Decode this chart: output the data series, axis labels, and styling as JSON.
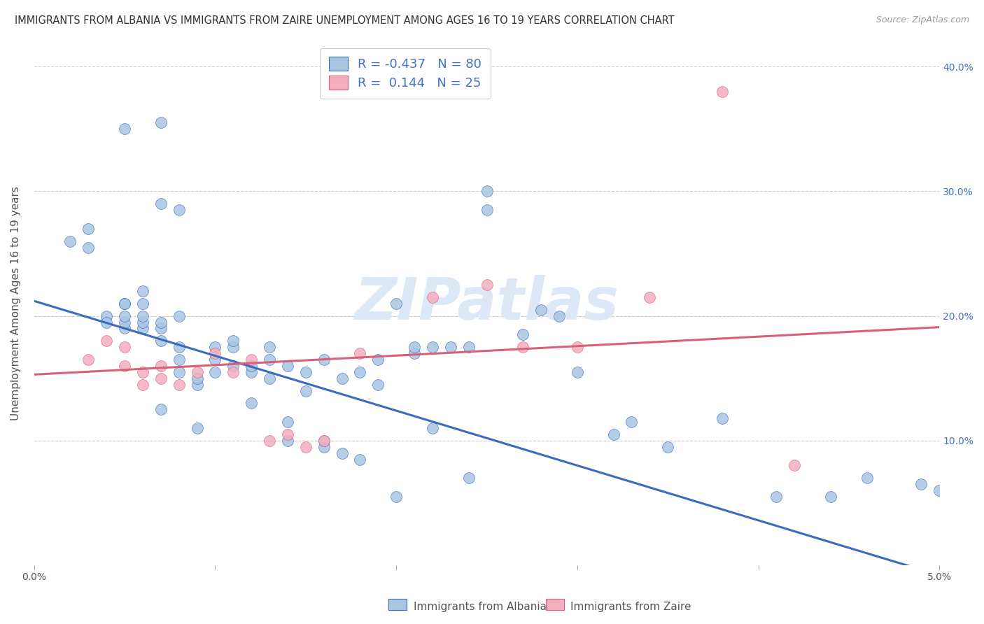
{
  "title": "IMMIGRANTS FROM ALBANIA VS IMMIGRANTS FROM ZAIRE UNEMPLOYMENT AMONG AGES 16 TO 19 YEARS CORRELATION CHART",
  "source": "Source: ZipAtlas.com",
  "ylabel": "Unemployment Among Ages 16 to 19 years",
  "xlim": [
    0.0,
    0.05
  ],
  "ylim": [
    0.0,
    0.42
  ],
  "x_ticks": [
    0.0,
    0.01,
    0.02,
    0.03,
    0.04,
    0.05
  ],
  "y_ticks": [
    0.0,
    0.1,
    0.2,
    0.3,
    0.4
  ],
  "color_albania": "#aac5e2",
  "color_zaire": "#f4aec0",
  "color_line_albania": "#3b6bbf",
  "color_line_zaire": "#d9607a",
  "watermark": "ZIPatlas",
  "watermark_color": "#dce8f5",
  "albania_line_x0": 0.0,
  "albania_line_y0": 0.212,
  "albania_line_x1": 0.05,
  "albania_line_y1": -0.008,
  "zaire_line_x0": 0.0,
  "zaire_line_y0": 0.153,
  "zaire_line_x1": 0.05,
  "zaire_line_y1": 0.191,
  "albania_x": [
    0.002,
    0.003,
    0.003,
    0.004,
    0.004,
    0.005,
    0.005,
    0.005,
    0.005,
    0.005,
    0.005,
    0.006,
    0.006,
    0.006,
    0.006,
    0.006,
    0.007,
    0.007,
    0.007,
    0.007,
    0.007,
    0.007,
    0.008,
    0.008,
    0.008,
    0.008,
    0.008,
    0.009,
    0.009,
    0.009,
    0.01,
    0.01,
    0.01,
    0.011,
    0.011,
    0.011,
    0.012,
    0.012,
    0.012,
    0.013,
    0.013,
    0.013,
    0.014,
    0.014,
    0.014,
    0.015,
    0.015,
    0.016,
    0.016,
    0.016,
    0.017,
    0.017,
    0.018,
    0.018,
    0.019,
    0.019,
    0.02,
    0.02,
    0.021,
    0.021,
    0.022,
    0.022,
    0.023,
    0.024,
    0.024,
    0.025,
    0.025,
    0.027,
    0.028,
    0.029,
    0.03,
    0.032,
    0.033,
    0.035,
    0.038,
    0.041,
    0.044,
    0.046,
    0.049,
    0.05
  ],
  "albania_y": [
    0.26,
    0.27,
    0.255,
    0.2,
    0.195,
    0.19,
    0.21,
    0.195,
    0.2,
    0.35,
    0.21,
    0.19,
    0.195,
    0.2,
    0.21,
    0.22,
    0.125,
    0.18,
    0.19,
    0.195,
    0.29,
    0.355,
    0.155,
    0.165,
    0.175,
    0.2,
    0.285,
    0.11,
    0.145,
    0.15,
    0.155,
    0.165,
    0.175,
    0.16,
    0.175,
    0.18,
    0.13,
    0.155,
    0.16,
    0.15,
    0.165,
    0.175,
    0.1,
    0.115,
    0.16,
    0.14,
    0.155,
    0.095,
    0.1,
    0.165,
    0.09,
    0.15,
    0.085,
    0.155,
    0.145,
    0.165,
    0.055,
    0.21,
    0.17,
    0.175,
    0.11,
    0.175,
    0.175,
    0.07,
    0.175,
    0.285,
    0.3,
    0.185,
    0.205,
    0.2,
    0.155,
    0.105,
    0.115,
    0.095,
    0.118,
    0.055,
    0.055,
    0.07,
    0.065,
    0.06
  ],
  "zaire_x": [
    0.003,
    0.004,
    0.005,
    0.005,
    0.006,
    0.006,
    0.007,
    0.007,
    0.008,
    0.009,
    0.01,
    0.011,
    0.012,
    0.013,
    0.014,
    0.015,
    0.016,
    0.018,
    0.022,
    0.025,
    0.027,
    0.03,
    0.034,
    0.038,
    0.042
  ],
  "zaire_y": [
    0.165,
    0.18,
    0.16,
    0.175,
    0.145,
    0.155,
    0.15,
    0.16,
    0.145,
    0.155,
    0.17,
    0.155,
    0.165,
    0.1,
    0.105,
    0.095,
    0.1,
    0.17,
    0.215,
    0.225,
    0.175,
    0.175,
    0.215,
    0.38,
    0.08
  ],
  "background_color": "#ffffff",
  "grid_color": "#cccccc",
  "title_fontsize": 10.5,
  "axis_label_fontsize": 11,
  "tick_fontsize": 10,
  "legend_fontsize": 13,
  "right_tick_color": "#4472c4",
  "legend_label1": "R = -0.437   N = 80",
  "legend_label2": "R =  0.144   N = 25",
  "bottom_label1": "Immigrants from Albania",
  "bottom_label2": "Immigrants from Zaire"
}
